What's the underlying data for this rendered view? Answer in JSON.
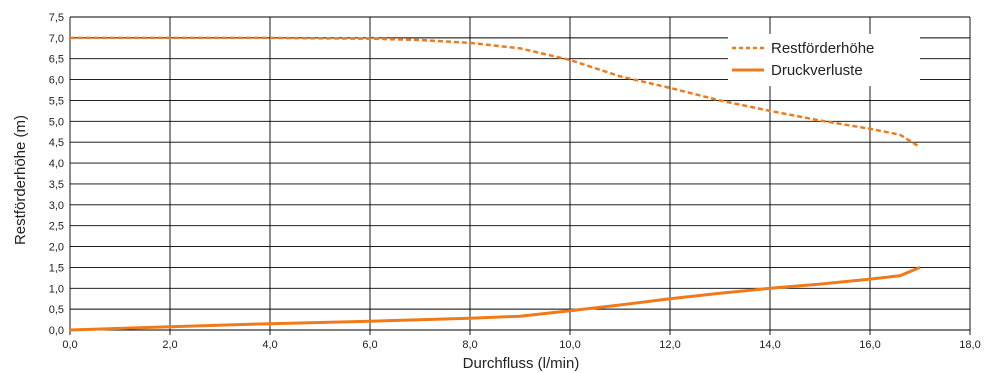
{
  "chart_data": {
    "type": "line",
    "title": "",
    "xlabel": "Durchfluss (l/min)",
    "ylabel": "Restförderhöhe (m)",
    "xlim": [
      0,
      18
    ],
    "ylim": [
      0,
      7.5
    ],
    "grid": true,
    "legend_position": "top-right",
    "x_ticks": [
      "0,0",
      "2,0",
      "4,0",
      "6,0",
      "8,0",
      "10,0",
      "12,0",
      "14,0",
      "16,0",
      "18,0"
    ],
    "y_ticks": [
      "0,0",
      "0,5",
      "1,0",
      "1,5",
      "2,0",
      "2,5",
      "3,0",
      "3,5",
      "4,0",
      "4,5",
      "5,0",
      "5,5",
      "6,0",
      "6,5",
      "7,0",
      "7,5"
    ],
    "series": [
      {
        "name": "Restförderhöhe",
        "style": "dashed",
        "color": "#f07a1a",
        "points": [
          [
            0,
            7.0
          ],
          [
            2,
            7.0
          ],
          [
            4,
            7.0
          ],
          [
            6,
            6.98
          ],
          [
            7,
            6.95
          ],
          [
            8,
            6.88
          ],
          [
            9,
            6.75
          ],
          [
            10,
            6.47
          ],
          [
            11,
            6.08
          ],
          [
            12,
            5.8
          ],
          [
            13,
            5.5
          ],
          [
            14,
            5.25
          ],
          [
            15,
            5.02
          ],
          [
            16,
            4.82
          ],
          [
            16.6,
            4.68
          ],
          [
            17.0,
            4.38
          ]
        ]
      },
      {
        "name": "Druckverluste",
        "style": "solid",
        "color": "#f07a1a",
        "points": [
          [
            0,
            0.0
          ],
          [
            2,
            0.08
          ],
          [
            4,
            0.15
          ],
          [
            6,
            0.21
          ],
          [
            8,
            0.28
          ],
          [
            9,
            0.33
          ],
          [
            10,
            0.46
          ],
          [
            11,
            0.6
          ],
          [
            12,
            0.75
          ],
          [
            13,
            0.88
          ],
          [
            14,
            1.0
          ],
          [
            15,
            1.1
          ],
          [
            16,
            1.22
          ],
          [
            16.6,
            1.3
          ],
          [
            17.0,
            1.5
          ]
        ]
      }
    ]
  }
}
